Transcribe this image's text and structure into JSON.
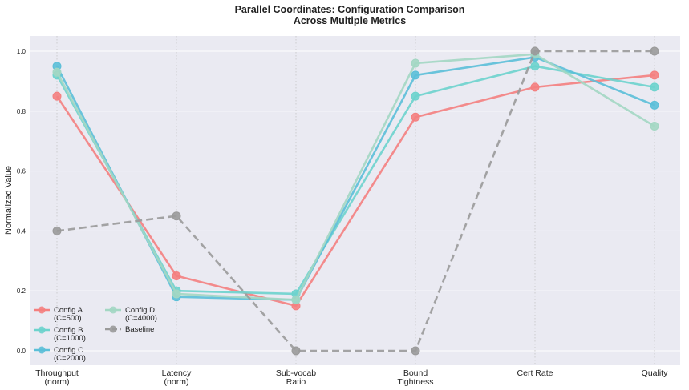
{
  "chart_data": {
    "type": "line",
    "title": "Parallel Coordinates: Configuration Comparison\nAcross Multiple Metrics",
    "xlabel": "",
    "ylabel": "Normalized Value",
    "ylim": [
      -0.05,
      1.05
    ],
    "yticks": [
      "0.0",
      "0.2",
      "0.4",
      "0.6",
      "0.8",
      "1.0"
    ],
    "categories": [
      "Throughput\n(norm)",
      "Latency\n(norm)",
      "Sub-vocab\nRatio",
      "Bound\nTightness",
      "Cert Rate",
      "Quality"
    ],
    "grid": true,
    "legend_position": "lower-left",
    "series": [
      {
        "name": "Config A\n(C=500)",
        "color": "#f47f7f",
        "dashed": false,
        "values": [
          0.85,
          0.25,
          0.15,
          0.78,
          0.88,
          0.92
        ]
      },
      {
        "name": "Config B\n(C=1000)",
        "color": "#6dd3cd",
        "dashed": false,
        "values": [
          0.92,
          0.2,
          0.19,
          0.85,
          0.95,
          0.88
        ]
      },
      {
        "name": "Config C\n(C=2000)",
        "color": "#5bbfd8",
        "dashed": false,
        "values": [
          0.95,
          0.18,
          0.17,
          0.92,
          0.98,
          0.82
        ]
      },
      {
        "name": "Config D\n(C=4000)",
        "color": "#a3d7c3",
        "dashed": false,
        "values": [
          0.93,
          0.19,
          0.17,
          0.96,
          0.99,
          0.75
        ]
      },
      {
        "name": "Baseline",
        "color": "#9a9a9a",
        "dashed": true,
        "values": [
          0.4,
          0.45,
          0.0,
          0.0,
          1.0,
          1.0
        ]
      }
    ]
  }
}
